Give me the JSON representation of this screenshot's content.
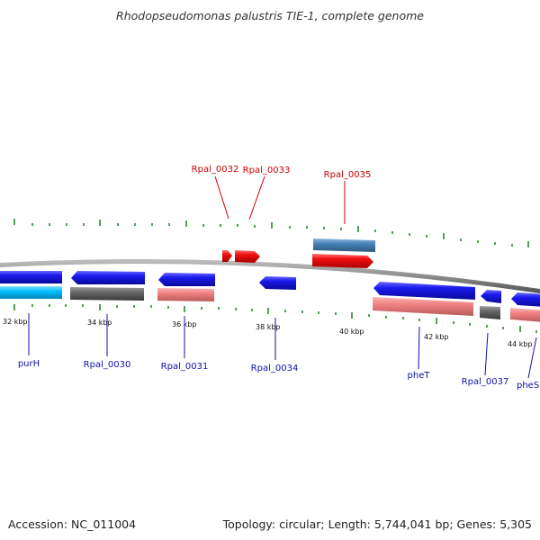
{
  "title": "Rhodopseudomonas palustris TIE-1, complete genome",
  "footer": {
    "accession": "Accession: NC_011004",
    "summary": "Topology: circular; Length: 5,744,041 bp; Genes: 5,305"
  },
  "colors": {
    "backbone": "#8a8a8a",
    "tick": "#2a8a2a",
    "forward_label": "#cc0000",
    "reverse_label": "#1111aa",
    "blue_cds": "#1a1aee",
    "red_cds": "#ee1111",
    "steel_cds": "#4682b4",
    "pink_cds": "#f08080",
    "grey_cds": "#666666",
    "cyan_cds": "#00bfff"
  },
  "scale_labels": [
    "32 kbp",
    "34 kbp",
    "36 kbp",
    "38 kbp",
    "40 kbp",
    "42 kbp",
    "44 kbp"
  ],
  "forward_features": [
    {
      "label": "Rpal_0032",
      "color": "red"
    },
    {
      "label": "Rpal_0033",
      "color": "red"
    },
    {
      "label": "Rpal_0035",
      "color": "red"
    }
  ],
  "reverse_features": [
    {
      "label": "purH"
    },
    {
      "label": "Rpal_0030"
    },
    {
      "label": "Rpal_0031"
    },
    {
      "label": "Rpal_0034"
    },
    {
      "label": "pheT"
    },
    {
      "label": "Rpal_0037"
    },
    {
      "label": "pheS"
    }
  ]
}
